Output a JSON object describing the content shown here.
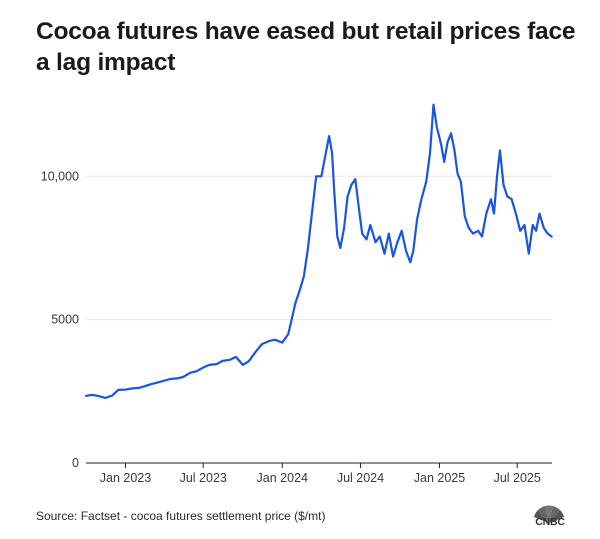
{
  "title": "Cocoa futures have eased but retail prices face a lag impact",
  "source": "Source: Factset - cocoa futures settlement price ($/mt)",
  "logo_text": "CNBC",
  "colors": {
    "line": "#1a55e0",
    "grid": "#e6e6e6",
    "axis": "#222222"
  },
  "chart_data": {
    "type": "line",
    "title": "Cocoa futures have eased but retail prices face a lag impact",
    "xlabel": "",
    "ylabel": "",
    "ylim": [
      0,
      12800
    ],
    "xlim": [
      "2022-10-01",
      "2025-09-20"
    ],
    "grid": true,
    "y_ticks": [
      {
        "value": 0,
        "label": "0"
      },
      {
        "value": 5000,
        "label": "5000"
      },
      {
        "value": 10000,
        "label": "10,000"
      }
    ],
    "x_ticks": [
      {
        "date": "2023-01-01",
        "label": "Jan 2023"
      },
      {
        "date": "2023-07-01",
        "label": "Jul 2023"
      },
      {
        "date": "2024-01-01",
        "label": "Jan 2024"
      },
      {
        "date": "2024-07-01",
        "label": "Jul 2024"
      },
      {
        "date": "2025-01-01",
        "label": "Jan 2025"
      },
      {
        "date": "2025-07-01",
        "label": "Jul 2025"
      }
    ],
    "series": [
      {
        "points": [
          [
            "2022-10-01",
            2340
          ],
          [
            "2022-10-15",
            2380
          ],
          [
            "2022-11-01",
            2330
          ],
          [
            "2022-11-15",
            2270
          ],
          [
            "2022-12-01",
            2350
          ],
          [
            "2022-12-15",
            2550
          ],
          [
            "2023-01-01",
            2560
          ],
          [
            "2023-01-15",
            2600
          ],
          [
            "2023-02-01",
            2620
          ],
          [
            "2023-02-15",
            2680
          ],
          [
            "2023-03-01",
            2750
          ],
          [
            "2023-03-15",
            2800
          ],
          [
            "2023-04-01",
            2870
          ],
          [
            "2023-04-15",
            2930
          ],
          [
            "2023-05-01",
            2950
          ],
          [
            "2023-05-15",
            3000
          ],
          [
            "2023-06-01",
            3150
          ],
          [
            "2023-06-15",
            3200
          ],
          [
            "2023-07-01",
            3330
          ],
          [
            "2023-07-15",
            3420
          ],
          [
            "2023-08-01",
            3450
          ],
          [
            "2023-08-15",
            3560
          ],
          [
            "2023-09-01",
            3600
          ],
          [
            "2023-09-15",
            3700
          ],
          [
            "2023-10-01",
            3420
          ],
          [
            "2023-10-15",
            3550
          ],
          [
            "2023-11-01",
            3900
          ],
          [
            "2023-11-15",
            4150
          ],
          [
            "2023-12-01",
            4250
          ],
          [
            "2023-12-15",
            4300
          ],
          [
            "2024-01-01",
            4200
          ],
          [
            "2024-01-15",
            4500
          ],
          [
            "2024-02-01",
            5600
          ],
          [
            "2024-02-10",
            6000
          ],
          [
            "2024-02-20",
            6500
          ],
          [
            "2024-03-01",
            7500
          ],
          [
            "2024-03-10",
            8700
          ],
          [
            "2024-03-20",
            10000
          ],
          [
            "2024-04-01",
            10000
          ],
          [
            "2024-04-10",
            10700
          ],
          [
            "2024-04-19",
            11400
          ],
          [
            "2024-04-26",
            10800
          ],
          [
            "2024-05-01",
            9500
          ],
          [
            "2024-05-08",
            7900
          ],
          [
            "2024-05-15",
            7500
          ],
          [
            "2024-05-24",
            8200
          ],
          [
            "2024-06-01",
            9300
          ],
          [
            "2024-06-10",
            9700
          ],
          [
            "2024-06-19",
            9900
          ],
          [
            "2024-06-28",
            8800
          ],
          [
            "2024-07-05",
            8000
          ],
          [
            "2024-07-15",
            7800
          ],
          [
            "2024-07-24",
            8300
          ],
          [
            "2024-08-05",
            7700
          ],
          [
            "2024-08-15",
            7900
          ],
          [
            "2024-08-26",
            7300
          ],
          [
            "2024-09-05",
            8000
          ],
          [
            "2024-09-15",
            7200
          ],
          [
            "2024-09-25",
            7700
          ],
          [
            "2024-10-05",
            8100
          ],
          [
            "2024-10-15",
            7400
          ],
          [
            "2024-10-25",
            7000
          ],
          [
            "2024-11-01",
            7400
          ],
          [
            "2024-11-10",
            8500
          ],
          [
            "2024-11-20",
            9200
          ],
          [
            "2024-12-01",
            9800
          ],
          [
            "2024-12-10",
            10800
          ],
          [
            "2024-12-18",
            12500
          ],
          [
            "2024-12-26",
            11700
          ],
          [
            "2025-01-05",
            11100
          ],
          [
            "2025-01-12",
            10500
          ],
          [
            "2025-01-20",
            11200
          ],
          [
            "2025-01-28",
            11500
          ],
          [
            "2025-02-05",
            10900
          ],
          [
            "2025-02-12",
            10100
          ],
          [
            "2025-02-20",
            9800
          ],
          [
            "2025-03-01",
            8600
          ],
          [
            "2025-03-10",
            8200
          ],
          [
            "2025-03-20",
            8000
          ],
          [
            "2025-04-01",
            8100
          ],
          [
            "2025-04-10",
            7900
          ],
          [
            "2025-04-20",
            8700
          ],
          [
            "2025-05-01",
            9200
          ],
          [
            "2025-05-08",
            8700
          ],
          [
            "2025-05-15",
            10000
          ],
          [
            "2025-05-22",
            10900
          ],
          [
            "2025-05-30",
            9700
          ],
          [
            "2025-06-08",
            9300
          ],
          [
            "2025-06-18",
            9200
          ],
          [
            "2025-06-28",
            8700
          ],
          [
            "2025-07-08",
            8100
          ],
          [
            "2025-07-18",
            8300
          ],
          [
            "2025-07-28",
            7300
          ],
          [
            "2025-08-06",
            8300
          ],
          [
            "2025-08-14",
            8100
          ],
          [
            "2025-08-22",
            8700
          ],
          [
            "2025-09-01",
            8200
          ],
          [
            "2025-09-10",
            8000
          ],
          [
            "2025-09-19",
            7900
          ]
        ]
      }
    ]
  }
}
